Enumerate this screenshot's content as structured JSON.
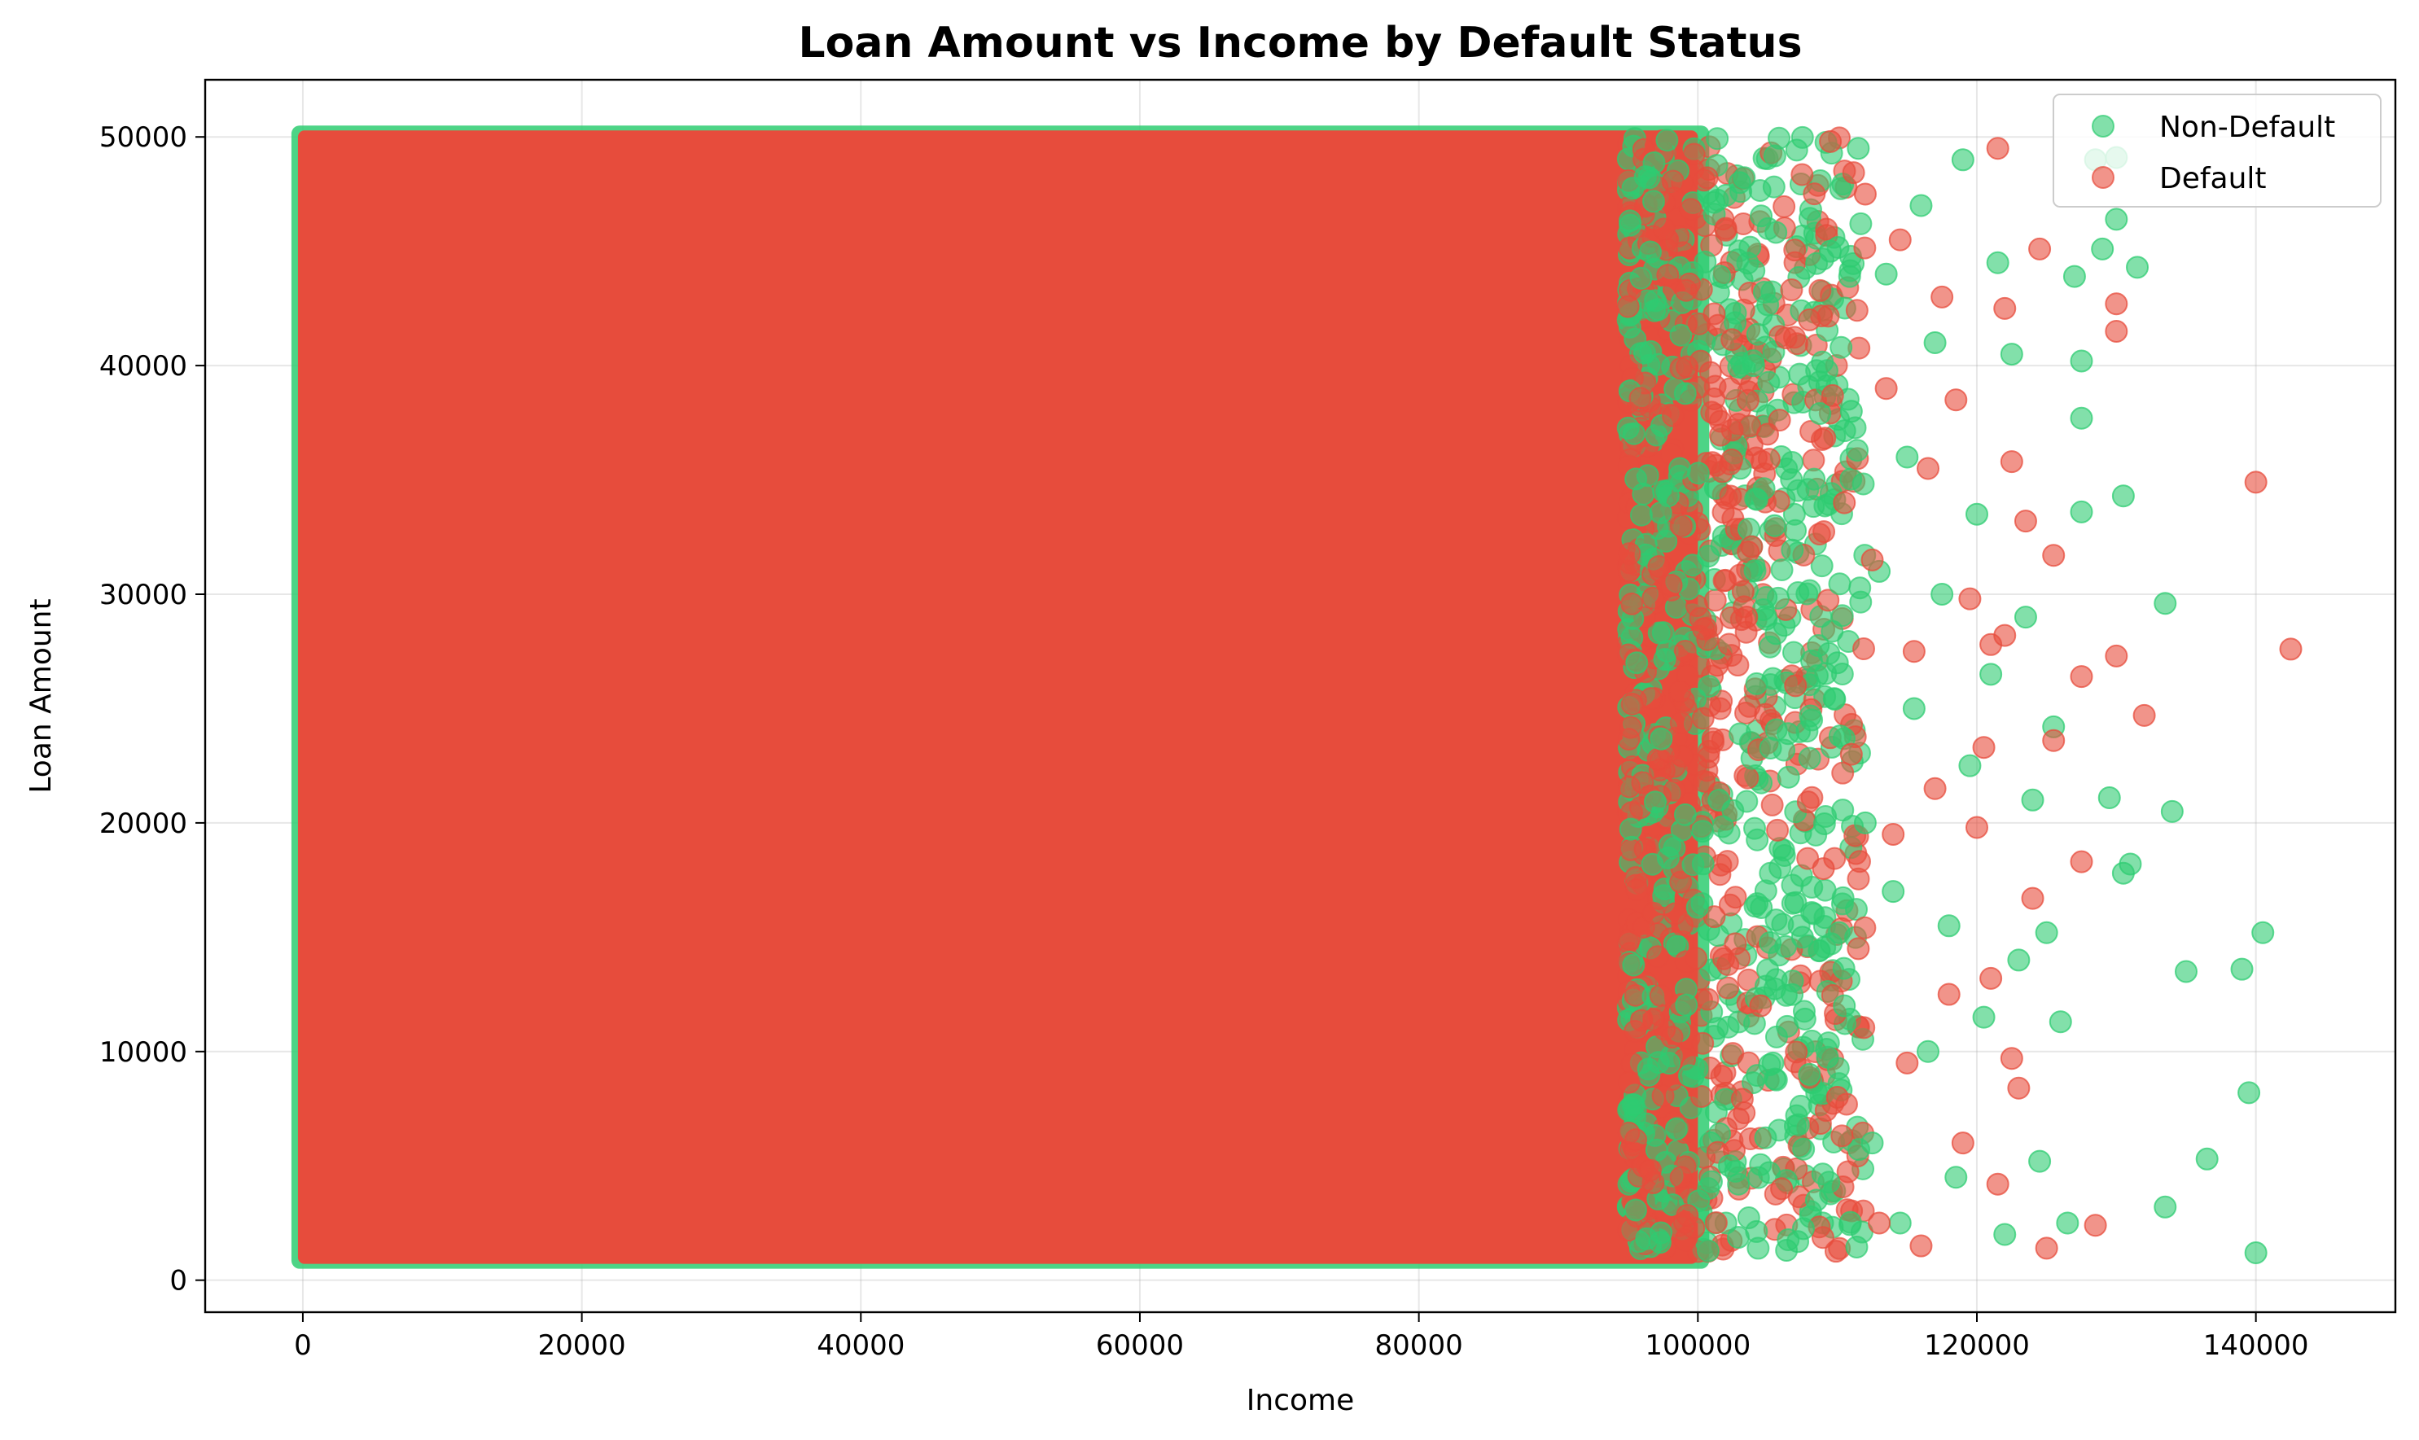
{
  "chart_data": {
    "type": "scatter",
    "title": "Loan Amount vs Income by Default Status",
    "xlabel": "Income",
    "ylabel": "Loan Amount",
    "xlim": [
      -7000,
      150000
    ],
    "ylim": [
      -1400,
      52500
    ],
    "x_ticks": [
      0,
      20000,
      40000,
      60000,
      80000,
      100000,
      120000,
      140000
    ],
    "x_tick_labels": [
      "0",
      "20000",
      "40000",
      "60000",
      "80000",
      "100000",
      "120000",
      "140000"
    ],
    "y_ticks": [
      0,
      10000,
      20000,
      30000,
      40000,
      50000
    ],
    "y_tick_labels": [
      "0",
      "10000",
      "20000",
      "30000",
      "40000",
      "50000"
    ],
    "grid": true,
    "legend_position": "top-right",
    "dense_region": {
      "x_range": [
        0,
        100000
      ],
      "y_range": [
        1000,
        50000
      ],
      "note_series": "Default"
    },
    "series": [
      {
        "name": "Non-Default",
        "color": "#2ecc71",
        "points": [
          [
            103000,
            48000
          ],
          [
            104000,
            40000
          ],
          [
            105500,
            33000
          ],
          [
            106500,
            22000
          ],
          [
            107500,
            15000
          ],
          [
            108000,
            9000
          ],
          [
            108500,
            3500
          ],
          [
            109500,
            45000
          ],
          [
            110000,
            27000
          ],
          [
            110500,
            12000
          ],
          [
            111000,
            38000
          ],
          [
            111500,
            49500
          ],
          [
            112000,
            20000
          ],
          [
            112500,
            6000
          ],
          [
            113000,
            31000
          ],
          [
            113500,
            44000
          ],
          [
            114000,
            17000
          ],
          [
            114500,
            2500
          ],
          [
            115000,
            36000
          ],
          [
            115500,
            25000
          ],
          [
            116000,
            47000
          ],
          [
            116500,
            10000
          ],
          [
            117000,
            41000
          ],
          [
            117500,
            30000
          ],
          [
            118000,
            15500
          ],
          [
            118500,
            4500
          ],
          [
            119000,
            49000
          ],
          [
            119500,
            22500
          ],
          [
            120000,
            33500
          ],
          [
            120500,
            11500
          ],
          [
            121000,
            26500
          ],
          [
            121500,
            44500
          ],
          [
            122000,
            2000
          ],
          [
            122500,
            40500
          ],
          [
            123000,
            14000
          ],
          [
            123500,
            29000
          ],
          [
            124000,
            21000
          ],
          [
            124500,
            5200
          ],
          [
            125000,
            15200
          ],
          [
            125500,
            24200
          ],
          [
            126000,
            11300
          ],
          [
            126500,
            2500
          ],
          [
            127000,
            43900
          ],
          [
            127500,
            40200
          ],
          [
            127500,
            33600
          ],
          [
            127500,
            37700
          ],
          [
            128500,
            49000
          ],
          [
            129000,
            45100
          ],
          [
            129500,
            21100
          ],
          [
            130000,
            49100
          ],
          [
            130000,
            46400
          ],
          [
            130500,
            34300
          ],
          [
            130500,
            17800
          ],
          [
            131000,
            18200
          ],
          [
            131500,
            44300
          ],
          [
            133500,
            29600
          ],
          [
            133500,
            3200
          ],
          [
            134000,
            20500
          ],
          [
            135000,
            13500
          ],
          [
            136500,
            5300
          ],
          [
            139000,
            13600
          ],
          [
            139500,
            8200
          ],
          [
            140000,
            1200
          ],
          [
            140500,
            15200
          ]
        ]
      },
      {
        "name": "Default",
        "color": "#e74c3c",
        "points": [
          [
            102000,
            46000
          ],
          [
            103500,
            29000
          ],
          [
            104500,
            12000
          ],
          [
            105000,
            37000
          ],
          [
            106000,
            4000
          ],
          [
            107000,
            26000
          ],
          [
            108000,
            42000
          ],
          [
            109000,
            18000
          ],
          [
            109500,
            49800
          ],
          [
            110000,
            8000
          ],
          [
            110500,
            34000
          ],
          [
            111000,
            23000
          ],
          [
            111500,
            14500
          ],
          [
            112000,
            47500
          ],
          [
            112500,
            31500
          ],
          [
            113000,
            2500
          ],
          [
            113500,
            39000
          ],
          [
            114000,
            19500
          ],
          [
            114500,
            45500
          ],
          [
            115000,
            9500
          ],
          [
            115500,
            27500
          ],
          [
            116000,
            1500
          ],
          [
            116500,
            35500
          ],
          [
            117000,
            21500
          ],
          [
            117500,
            43000
          ],
          [
            118000,
            12500
          ],
          [
            118500,
            38500
          ],
          [
            119000,
            6000
          ],
          [
            119500,
            29800
          ],
          [
            120000,
            19800
          ],
          [
            120500,
            23300
          ],
          [
            121000,
            13200
          ],
          [
            121000,
            27800
          ],
          [
            121500,
            4200
          ],
          [
            121500,
            49500
          ],
          [
            122000,
            42500
          ],
          [
            122000,
            28200
          ],
          [
            122500,
            9700
          ],
          [
            122500,
            35800
          ],
          [
            123000,
            8400
          ],
          [
            123500,
            33200
          ],
          [
            124000,
            16700
          ],
          [
            124500,
            45100
          ],
          [
            125000,
            1400
          ],
          [
            125500,
            31700
          ],
          [
            125500,
            23600
          ],
          [
            127500,
            18300
          ],
          [
            127500,
            26400
          ],
          [
            128500,
            2400
          ],
          [
            130000,
            27300
          ],
          [
            130000,
            41500
          ],
          [
            130000,
            42700
          ],
          [
            132000,
            24700
          ],
          [
            140000,
            34900
          ],
          [
            142500,
            27600
          ]
        ]
      }
    ]
  }
}
